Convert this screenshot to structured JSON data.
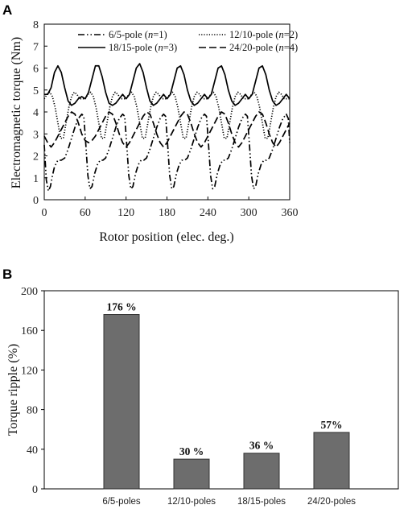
{
  "panels": {
    "a": "A",
    "b": "B"
  },
  "chart_data": [
    {
      "type": "line",
      "title": "",
      "xlabel": "Rotor position (elec. deg.)",
      "ylabel": "Electromagnetic torque (Nm)",
      "xlim": [
        0,
        360
      ],
      "ylim": [
        0,
        8
      ],
      "xticks": [
        "0",
        "60",
        "120",
        "180",
        "240",
        "300",
        "360"
      ],
      "yticks": [
        "0",
        "1",
        "2",
        "3",
        "4",
        "5",
        "6",
        "7",
        "8"
      ],
      "grid": false,
      "legend_position": "top",
      "series": [
        {
          "name": "6/5-pole (n=1)",
          "label_text": "6/5-pole",
          "n_label": "n",
          "n_value": "=1",
          "dash": "dash-dot-dot",
          "x": [
            0,
            3,
            6,
            9,
            12,
            15,
            20,
            25,
            30,
            35,
            40,
            45,
            50,
            55,
            58,
            61,
            64,
            67,
            70,
            74,
            78,
            82,
            86,
            90,
            95,
            100,
            105,
            110,
            115,
            118,
            121,
            124,
            127,
            130,
            134,
            138,
            142,
            146,
            150,
            155,
            160,
            165,
            170,
            175,
            178,
            181,
            184,
            187,
            190,
            194,
            198,
            202,
            206,
            210,
            215,
            220,
            225,
            230,
            235,
            238,
            241,
            244,
            247,
            250,
            254,
            258,
            262,
            266,
            270,
            275,
            280,
            285,
            290,
            295,
            298,
            301,
            304,
            307,
            310,
            314,
            318,
            322,
            326,
            330,
            335,
            340,
            345,
            350,
            355,
            358,
            360
          ],
          "y": [
            2.5,
            0.9,
            0.4,
            0.6,
            1.1,
            1.5,
            1.8,
            1.8,
            1.9,
            2.3,
            2.8,
            3.3,
            3.7,
            3.9,
            3.8,
            2.5,
            1.1,
            0.5,
            0.6,
            1.2,
            1.6,
            1.8,
            1.8,
            1.9,
            2.3,
            2.8,
            3.3,
            3.7,
            3.9,
            3.8,
            2.5,
            1.1,
            0.5,
            0.6,
            1.2,
            1.6,
            1.8,
            1.8,
            1.9,
            2.3,
            2.8,
            3.3,
            3.7,
            3.9,
            3.8,
            2.5,
            1.1,
            0.5,
            0.6,
            1.2,
            1.6,
            1.8,
            1.8,
            1.9,
            2.3,
            2.8,
            3.3,
            3.7,
            3.9,
            3.8,
            2.5,
            1.1,
            0.5,
            0.6,
            1.2,
            1.6,
            1.8,
            1.8,
            1.9,
            2.3,
            2.8,
            3.3,
            3.7,
            3.9,
            3.8,
            2.5,
            1.1,
            0.5,
            0.6,
            1.2,
            1.6,
            1.8,
            1.8,
            1.9,
            2.3,
            2.8,
            3.3,
            3.7,
            3.9,
            3.7,
            2.6
          ]
        },
        {
          "name": "12/10-pole (n=2)",
          "label_text": "12/10-pole",
          "n_label": "n",
          "n_value": "=2",
          "dash": "dotted",
          "x": [
            0,
            4,
            8,
            12,
            16,
            20,
            24,
            28,
            32,
            36,
            40,
            44,
            48,
            52,
            56,
            60,
            64,
            68,
            72,
            76,
            80,
            84,
            88,
            92,
            96,
            100,
            104,
            108,
            112,
            116,
            120,
            124,
            128,
            132,
            136,
            140,
            144,
            148,
            152,
            156,
            160,
            164,
            168,
            172,
            176,
            180,
            184,
            188,
            192,
            196,
            200,
            204,
            208,
            212,
            216,
            220,
            224,
            228,
            232,
            236,
            240,
            244,
            248,
            252,
            256,
            260,
            264,
            268,
            272,
            276,
            280,
            284,
            288,
            292,
            296,
            300,
            304,
            308,
            312,
            316,
            320,
            324,
            328,
            332,
            336,
            340,
            344,
            348,
            352,
            356,
            360
          ],
          "y": [
            4.6,
            4.8,
            4.9,
            4.7,
            4.2,
            3.5,
            2.8,
            2.8,
            3.5,
            4.2,
            4.7,
            4.9,
            4.8,
            4.6,
            4.6,
            4.6,
            4.8,
            4.9,
            4.7,
            4.2,
            3.5,
            2.8,
            2.8,
            3.5,
            4.2,
            4.7,
            4.9,
            4.8,
            4.6,
            4.6,
            4.6,
            4.8,
            4.9,
            4.7,
            4.2,
            3.5,
            2.8,
            2.8,
            3.5,
            4.2,
            4.7,
            4.9,
            4.8,
            4.6,
            4.6,
            4.6,
            4.8,
            4.9,
            4.7,
            4.2,
            3.5,
            2.8,
            2.8,
            3.5,
            4.2,
            4.7,
            4.9,
            4.8,
            4.6,
            4.6,
            4.6,
            4.8,
            4.9,
            4.7,
            4.2,
            3.5,
            2.8,
            2.8,
            3.5,
            4.2,
            4.7,
            4.9,
            4.8,
            4.6,
            4.6,
            4.6,
            4.8,
            4.9,
            4.7,
            4.2,
            3.5,
            2.8,
            2.8,
            3.5,
            4.2,
            4.7,
            4.9,
            4.8,
            4.6,
            4.6,
            4.6
          ]
        },
        {
          "name": "18/15-pole (n=3)",
          "label_text": "18/15-pole",
          "n_label": "n",
          "n_value": "=3",
          "dash": "solid",
          "x": [
            0,
            5,
            10,
            15,
            20,
            25,
            30,
            35,
            40,
            45,
            50,
            55,
            60,
            65,
            70,
            75,
            80,
            85,
            90,
            95,
            100,
            105,
            110,
            115,
            120,
            125,
            130,
            135,
            140,
            145,
            150,
            155,
            160,
            165,
            170,
            175,
            180,
            185,
            190,
            195,
            200,
            205,
            210,
            215,
            220,
            225,
            230,
            235,
            240,
            245,
            250,
            255,
            260,
            265,
            270,
            275,
            280,
            285,
            290,
            295,
            300,
            305,
            310,
            315,
            320,
            325,
            330,
            335,
            340,
            345,
            350,
            355,
            360
          ],
          "y": [
            4.8,
            4.8,
            5.1,
            5.8,
            6.1,
            5.8,
            5.1,
            4.5,
            4.3,
            4.4,
            4.6,
            4.7,
            4.6,
            4.9,
            5.5,
            6.1,
            6.1,
            5.6,
            4.9,
            4.4,
            4.3,
            4.4,
            4.6,
            4.8,
            4.6,
            4.8,
            5.4,
            6.0,
            6.2,
            5.8,
            5.1,
            4.5,
            4.3,
            4.4,
            4.6,
            4.8,
            4.6,
            4.8,
            5.4,
            6.0,
            6.1,
            5.7,
            5.0,
            4.5,
            4.3,
            4.4,
            4.6,
            4.8,
            4.6,
            4.8,
            5.4,
            6.0,
            6.1,
            5.7,
            5.0,
            4.5,
            4.3,
            4.4,
            4.6,
            4.8,
            4.6,
            4.8,
            5.4,
            6.0,
            6.1,
            5.7,
            5.0,
            4.5,
            4.3,
            4.4,
            4.6,
            4.8,
            4.6
          ]
        },
        {
          "name": "24/20-pole (n=4)",
          "label_text": "24/20-pole",
          "n_label": "n",
          "n_value": "=4",
          "dash": "long-dash",
          "x": [
            0,
            5,
            10,
            15,
            20,
            25,
            30,
            35,
            40,
            45,
            50,
            55,
            60,
            65,
            70,
            75,
            80,
            85,
            90,
            95,
            100,
            105,
            110,
            115,
            120,
            125,
            130,
            135,
            140,
            145,
            150,
            155,
            160,
            165,
            170,
            175,
            180,
            185,
            190,
            195,
            200,
            205,
            210,
            215,
            220,
            225,
            230,
            235,
            240,
            245,
            250,
            255,
            260,
            265,
            270,
            275,
            280,
            285,
            290,
            295,
            300,
            305,
            310,
            315,
            320,
            325,
            330,
            335,
            340,
            345,
            350,
            355,
            360
          ],
          "y": [
            2.9,
            2.6,
            2.4,
            2.6,
            2.9,
            3.2,
            3.5,
            3.8,
            4.0,
            3.9,
            3.5,
            3.0,
            2.7,
            2.6,
            2.7,
            2.9,
            3.2,
            3.5,
            3.8,
            4.0,
            3.9,
            3.5,
            3.0,
            2.6,
            2.4,
            2.6,
            2.9,
            3.2,
            3.5,
            3.8,
            4.0,
            3.9,
            3.5,
            3.0,
            2.6,
            2.4,
            2.6,
            2.9,
            3.2,
            3.5,
            3.8,
            4.0,
            3.9,
            3.5,
            3.0,
            2.6,
            2.4,
            2.6,
            2.9,
            3.2,
            3.5,
            3.8,
            4.0,
            3.9,
            3.5,
            3.0,
            2.6,
            2.4,
            2.6,
            2.9,
            3.2,
            3.5,
            3.8,
            4.0,
            3.9,
            3.5,
            3.0,
            2.6,
            2.4,
            2.6,
            2.9,
            3.2,
            3.5
          ]
        }
      ]
    },
    {
      "type": "bar",
      "title": "",
      "xlabel": "",
      "ylabel": "Torque ripple (%)",
      "ylim": [
        0,
        200
      ],
      "yticks": [
        "0",
        "40",
        "80",
        "120",
        "160",
        "200"
      ],
      "grid": false,
      "bar_color": "#6d6d6d",
      "categories": [
        "6/5-poles",
        "12/10-poles",
        "18/15-poles",
        "24/20-poles"
      ],
      "values": [
        176,
        30,
        36,
        57
      ],
      "data_labels": [
        "176 %",
        "30 %",
        "36 %",
        "57%"
      ]
    }
  ]
}
